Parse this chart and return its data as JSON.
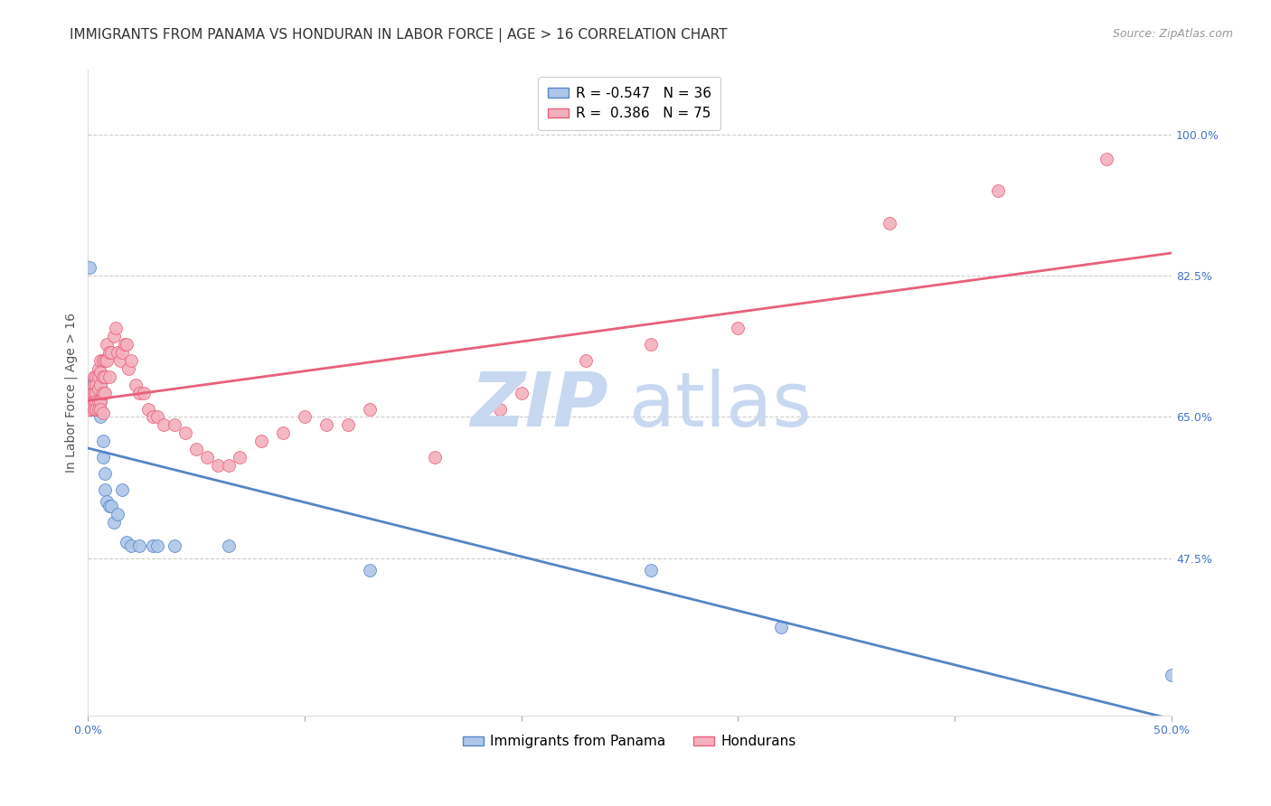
{
  "title": "IMMIGRANTS FROM PANAMA VS HONDURAN IN LABOR FORCE | AGE > 16 CORRELATION CHART",
  "source": "Source: ZipAtlas.com",
  "ylabel": "In Labor Force | Age > 16",
  "xlim": [
    0.0,
    0.5
  ],
  "ylim": [
    0.28,
    1.08
  ],
  "yticks_right": [
    0.475,
    0.65,
    0.825,
    1.0
  ],
  "yticklabels_right": [
    "47.5%",
    "65.0%",
    "82.5%",
    "100.0%"
  ],
  "background_color": "#ffffff",
  "grid_color": "#cccccc",
  "watermark_color": "#c8d8f0",
  "panama_color": "#aec6e8",
  "panama_color_line": "#5585c8",
  "honduran_color": "#f4b0be",
  "honduran_color_line": "#e8607a",
  "panama_scatter": [
    [
      0.001,
      0.835
    ],
    [
      0.002,
      0.685
    ],
    [
      0.002,
      0.66
    ],
    [
      0.003,
      0.695
    ],
    [
      0.003,
      0.67
    ],
    [
      0.003,
      0.66
    ],
    [
      0.004,
      0.685
    ],
    [
      0.004,
      0.67
    ],
    [
      0.004,
      0.66
    ],
    [
      0.005,
      0.7
    ],
    [
      0.005,
      0.68
    ],
    [
      0.005,
      0.66
    ],
    [
      0.006,
      0.69
    ],
    [
      0.006,
      0.67
    ],
    [
      0.006,
      0.65
    ],
    [
      0.007,
      0.62
    ],
    [
      0.007,
      0.6
    ],
    [
      0.008,
      0.58
    ],
    [
      0.008,
      0.56
    ],
    [
      0.009,
      0.545
    ],
    [
      0.01,
      0.54
    ],
    [
      0.011,
      0.54
    ],
    [
      0.012,
      0.52
    ],
    [
      0.014,
      0.53
    ],
    [
      0.016,
      0.56
    ],
    [
      0.018,
      0.495
    ],
    [
      0.02,
      0.49
    ],
    [
      0.024,
      0.49
    ],
    [
      0.03,
      0.49
    ],
    [
      0.032,
      0.49
    ],
    [
      0.04,
      0.49
    ],
    [
      0.065,
      0.49
    ],
    [
      0.13,
      0.46
    ],
    [
      0.26,
      0.46
    ],
    [
      0.32,
      0.39
    ],
    [
      0.5,
      0.33
    ]
  ],
  "honduran_scatter": [
    [
      0.001,
      0.67
    ],
    [
      0.001,
      0.66
    ],
    [
      0.002,
      0.68
    ],
    [
      0.002,
      0.665
    ],
    [
      0.003,
      0.7
    ],
    [
      0.003,
      0.69
    ],
    [
      0.003,
      0.68
    ],
    [
      0.003,
      0.67
    ],
    [
      0.003,
      0.66
    ],
    [
      0.004,
      0.7
    ],
    [
      0.004,
      0.69
    ],
    [
      0.004,
      0.68
    ],
    [
      0.004,
      0.67
    ],
    [
      0.004,
      0.66
    ],
    [
      0.005,
      0.71
    ],
    [
      0.005,
      0.7
    ],
    [
      0.005,
      0.685
    ],
    [
      0.005,
      0.67
    ],
    [
      0.005,
      0.66
    ],
    [
      0.006,
      0.72
    ],
    [
      0.006,
      0.705
    ],
    [
      0.006,
      0.69
    ],
    [
      0.006,
      0.67
    ],
    [
      0.006,
      0.66
    ],
    [
      0.007,
      0.72
    ],
    [
      0.007,
      0.7
    ],
    [
      0.007,
      0.68
    ],
    [
      0.007,
      0.655
    ],
    [
      0.008,
      0.72
    ],
    [
      0.008,
      0.7
    ],
    [
      0.008,
      0.68
    ],
    [
      0.009,
      0.74
    ],
    [
      0.009,
      0.72
    ],
    [
      0.01,
      0.73
    ],
    [
      0.01,
      0.7
    ],
    [
      0.011,
      0.73
    ],
    [
      0.012,
      0.75
    ],
    [
      0.013,
      0.76
    ],
    [
      0.014,
      0.73
    ],
    [
      0.015,
      0.72
    ],
    [
      0.016,
      0.73
    ],
    [
      0.017,
      0.74
    ],
    [
      0.018,
      0.74
    ],
    [
      0.019,
      0.71
    ],
    [
      0.02,
      0.72
    ],
    [
      0.022,
      0.69
    ],
    [
      0.024,
      0.68
    ],
    [
      0.026,
      0.68
    ],
    [
      0.028,
      0.66
    ],
    [
      0.03,
      0.65
    ],
    [
      0.032,
      0.65
    ],
    [
      0.035,
      0.64
    ],
    [
      0.04,
      0.64
    ],
    [
      0.045,
      0.63
    ],
    [
      0.05,
      0.61
    ],
    [
      0.055,
      0.6
    ],
    [
      0.06,
      0.59
    ],
    [
      0.065,
      0.59
    ],
    [
      0.07,
      0.6
    ],
    [
      0.08,
      0.62
    ],
    [
      0.09,
      0.63
    ],
    [
      0.1,
      0.65
    ],
    [
      0.11,
      0.64
    ],
    [
      0.12,
      0.64
    ],
    [
      0.13,
      0.66
    ],
    [
      0.16,
      0.6
    ],
    [
      0.19,
      0.66
    ],
    [
      0.2,
      0.68
    ],
    [
      0.23,
      0.72
    ],
    [
      0.26,
      0.74
    ],
    [
      0.3,
      0.76
    ],
    [
      0.37,
      0.89
    ],
    [
      0.42,
      0.93
    ],
    [
      0.47,
      0.97
    ]
  ],
  "title_fontsize": 11,
  "axis_label_fontsize": 10,
  "tick_fontsize": 9,
  "source_fontsize": 9,
  "legend_fontsize": 11
}
